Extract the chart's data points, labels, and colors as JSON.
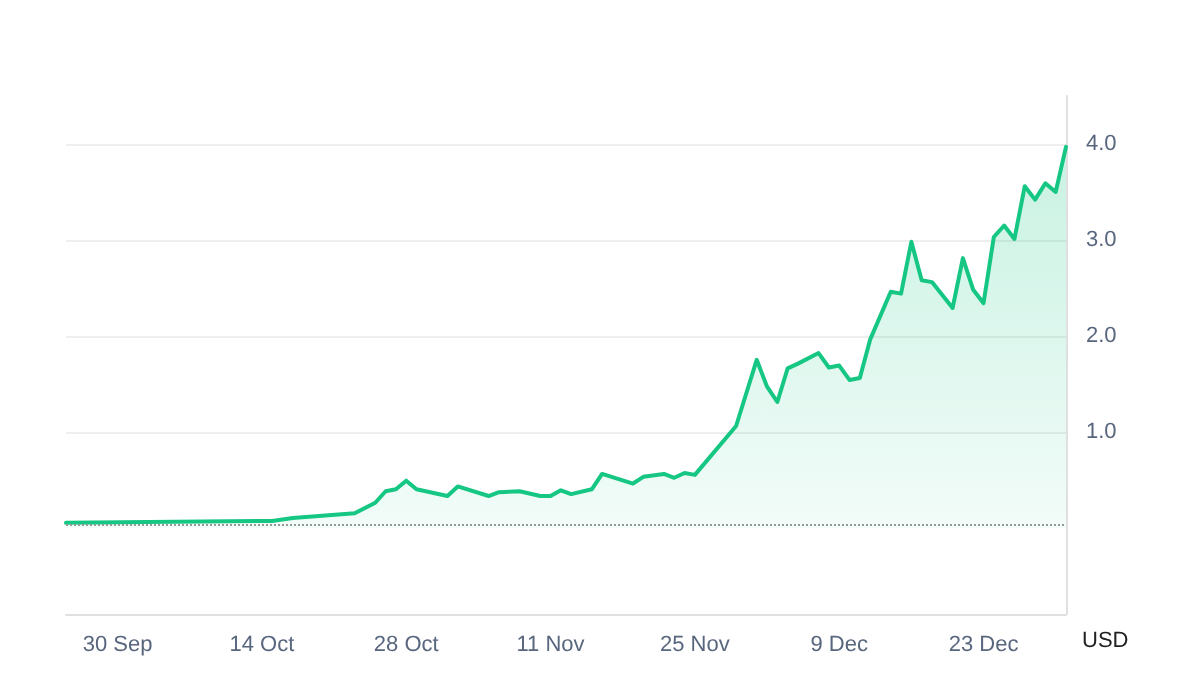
{
  "chart_data": {
    "type": "area",
    "ylabel": "USD",
    "x": [
      "--09-25",
      "--10-15",
      "--10-17",
      "--10-23",
      "--10-25",
      "--10-26",
      "--10-27",
      "--10-28",
      "--10-29",
      "--11-01",
      "--11-02",
      "--11-05",
      "--11-06",
      "--11-08",
      "--11-10",
      "--11-11",
      "--11-12",
      "--11-13",
      "--11-15",
      "--11-16",
      "--11-19",
      "--11-20",
      "--11-22",
      "--11-23",
      "--11-24",
      "--11-25",
      "--11-29",
      "--12-01",
      "--12-02",
      "--12-03",
      "--12-04",
      "--12-05",
      "--12-07",
      "--12-08",
      "--12-09",
      "--12-10",
      "--12-11",
      "--12-12",
      "--12-14",
      "--12-15",
      "--12-16",
      "--12-17",
      "--12-18",
      "--12-20",
      "--12-21",
      "--12-22",
      "--12-23",
      "--12-24",
      "--12-25",
      "--12-26",
      "--12-27",
      "--12-28",
      "--12-29",
      "--12-30",
      "--12-31"
    ],
    "series": [
      {
        "color": "#16c784",
        "values": [
          0.05,
          0.07,
          0.1,
          0.15,
          0.26,
          0.38,
          0.4,
          0.49,
          0.4,
          0.33,
          0.43,
          0.33,
          0.37,
          0.38,
          0.33,
          0.33,
          0.39,
          0.35,
          0.4,
          0.56,
          0.46,
          0.53,
          0.56,
          0.52,
          0.57,
          0.55,
          1.06,
          1.75,
          1.47,
          1.31,
          1.66,
          1.71,
          1.82,
          1.67,
          1.69,
          1.54,
          1.56,
          1.96,
          2.46,
          2.44,
          2.98,
          2.58,
          2.56,
          2.29,
          2.81,
          2.48,
          2.34,
          3.03,
          3.15,
          3.01,
          3.56,
          3.42,
          3.59,
          3.5,
          3.97
        ]
      }
    ],
    "xlim": [
      "--09-25",
      "--12-31"
    ],
    "xticks": [
      {
        "value": "--09-30",
        "label": "30 Sep"
      },
      {
        "value": "--10-14",
        "label": "14 Oct"
      },
      {
        "value": "--10-28",
        "label": "28 Oct"
      },
      {
        "value": "--11-11",
        "label": "11 Nov"
      },
      {
        "value": "--11-25",
        "label": "25 Nov"
      },
      {
        "value": "--12-09",
        "label": "9 Dec"
      },
      {
        "value": "--12-23",
        "label": "23 Dec"
      }
    ],
    "ylim": [
      -0.9,
      4.5
    ],
    "yticks": [
      {
        "value": 1,
        "label": "1.0"
      },
      {
        "value": 2,
        "label": "2.0"
      },
      {
        "value": 3,
        "label": "3.0"
      },
      {
        "value": 4,
        "label": "4.0"
      }
    ],
    "grid": "y",
    "marker": "none",
    "line_style": "solid",
    "ref_lines": [
      {
        "axis": "y",
        "value": 0.03,
        "color": "#999999",
        "line_style": "dotted"
      }
    ]
  }
}
